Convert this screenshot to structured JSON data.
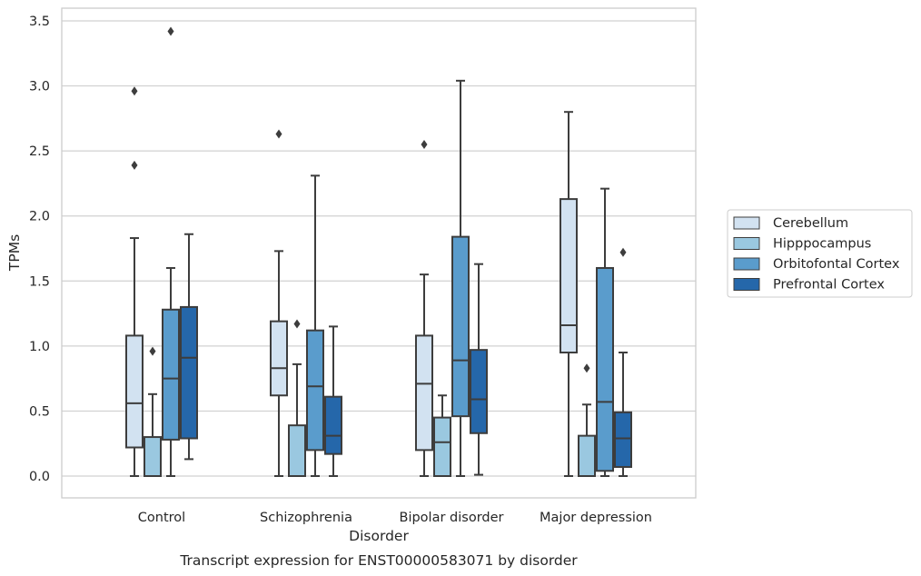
{
  "chart_data": {
    "type": "boxplot",
    "title": "",
    "caption": "Transcript expression for ENST00000583071 by disorder",
    "xlabel": "Disorder",
    "ylabel": "TPMs",
    "ylim": [
      -0.17,
      3.6
    ],
    "yticks": [
      "0.0",
      "0.5",
      "1.0",
      "1.5",
      "2.0",
      "2.5",
      "3.0",
      "3.5"
    ],
    "grid": "horizontal",
    "legend_position": "right",
    "categories": [
      "Control",
      "Schizophrenia",
      "Bipolar disorder",
      "Major depression"
    ],
    "series": [
      {
        "name": "Cerebellum",
        "color": "#d2e2f1",
        "boxes": [
          {
            "whislo": 0.0,
            "q1": 0.22,
            "med": 0.56,
            "q3": 1.08,
            "whishi": 1.83,
            "fliers": [
              2.39,
              2.96
            ]
          },
          {
            "whislo": 0.0,
            "q1": 0.62,
            "med": 0.83,
            "q3": 1.19,
            "whishi": 1.73,
            "fliers": [
              2.63
            ]
          },
          {
            "whislo": 0.0,
            "q1": 0.2,
            "med": 0.71,
            "q3": 1.08,
            "whishi": 1.55,
            "fliers": [
              2.55
            ]
          },
          {
            "whislo": 0.0,
            "q1": 0.95,
            "med": 1.16,
            "q3": 2.13,
            "whishi": 2.8,
            "fliers": []
          }
        ]
      },
      {
        "name": "Hipppocampus",
        "color": "#9ac8e0",
        "boxes": [
          {
            "whislo": 0.0,
            "q1": 0.0,
            "med": 0.0,
            "q3": 0.3,
            "whishi": 0.63,
            "fliers": [
              0.96
            ]
          },
          {
            "whislo": 0.0,
            "q1": 0.0,
            "med": 0.0,
            "q3": 0.39,
            "whishi": 0.86,
            "fliers": [
              1.17
            ]
          },
          {
            "whislo": 0.0,
            "q1": 0.0,
            "med": 0.26,
            "q3": 0.45,
            "whishi": 0.62,
            "fliers": []
          },
          {
            "whislo": 0.0,
            "q1": 0.0,
            "med": 0.0,
            "q3": 0.31,
            "whishi": 0.55,
            "fliers": [
              0.83
            ]
          }
        ]
      },
      {
        "name": "Orbitofontal Cortex",
        "color": "#5a9ccc",
        "boxes": [
          {
            "whislo": 0.0,
            "q1": 0.28,
            "med": 0.75,
            "q3": 1.28,
            "whishi": 1.6,
            "fliers": [
              3.42
            ]
          },
          {
            "whislo": 0.0,
            "q1": 0.2,
            "med": 0.69,
            "q3": 1.12,
            "whishi": 2.31,
            "fliers": []
          },
          {
            "whislo": 0.0,
            "q1": 0.46,
            "med": 0.89,
            "q3": 1.84,
            "whishi": 3.04,
            "fliers": []
          },
          {
            "whislo": 0.0,
            "q1": 0.04,
            "med": 0.57,
            "q3": 1.6,
            "whishi": 2.21,
            "fliers": []
          }
        ]
      },
      {
        "name": "Prefrontal Cortex",
        "color": "#2567aa",
        "boxes": [
          {
            "whislo": 0.13,
            "q1": 0.29,
            "med": 0.91,
            "q3": 1.3,
            "whishi": 1.86,
            "fliers": []
          },
          {
            "whislo": 0.0,
            "q1": 0.17,
            "med": 0.31,
            "q3": 0.61,
            "whishi": 1.15,
            "fliers": []
          },
          {
            "whislo": 0.01,
            "q1": 0.33,
            "med": 0.59,
            "q3": 0.97,
            "whishi": 1.63,
            "fliers": []
          },
          {
            "whislo": 0.0,
            "q1": 0.07,
            "med": 0.29,
            "q3": 0.49,
            "whishi": 0.95,
            "fliers": [
              1.72
            ]
          }
        ]
      }
    ]
  },
  "colors": {
    "grid": "#d0d0d0",
    "spine": "#cccccc",
    "line": "#3d3d3d",
    "text": "#262626"
  }
}
